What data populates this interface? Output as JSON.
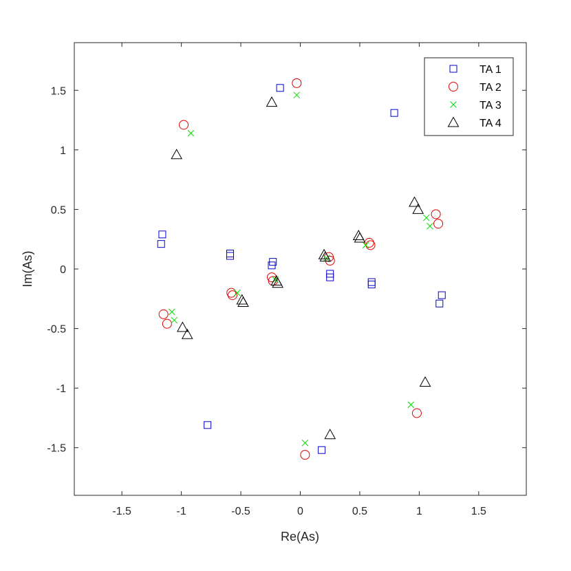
{
  "chart_data": {
    "type": "scatter",
    "title": "",
    "xlabel": "Re(As)",
    "ylabel": "Im(As)",
    "xlim": [
      -1.9,
      1.9
    ],
    "ylim": [
      -1.9,
      1.9
    ],
    "xticks": [
      -1.5,
      -1,
      -0.5,
      0,
      0.5,
      1,
      1.5
    ],
    "yticks": [
      -1.5,
      -1,
      -0.5,
      0,
      0.5,
      1,
      1.5
    ],
    "xtick_labels": [
      "-1.5",
      "-1",
      "-0.5",
      "0",
      "0.5",
      "1",
      "1.5"
    ],
    "ytick_labels": [
      "-1.5",
      "-1",
      "-0.5",
      "0",
      "0.5",
      "1",
      "1.5"
    ],
    "grid": false,
    "legend_position": "top-right",
    "series": [
      {
        "name": "TA 1",
        "marker": "square",
        "color": "#0000cc",
        "points": [
          [
            -0.17,
            1.52
          ],
          [
            0.79,
            1.31
          ],
          [
            -1.16,
            0.29
          ],
          [
            -1.17,
            0.21
          ],
          [
            -0.59,
            0.13
          ],
          [
            -0.59,
            0.11
          ],
          [
            -0.23,
            0.06
          ],
          [
            -0.24,
            0.03
          ],
          [
            0.25,
            -0.04
          ],
          [
            0.25,
            -0.07
          ],
          [
            0.6,
            -0.11
          ],
          [
            0.6,
            -0.13
          ],
          [
            1.19,
            -0.22
          ],
          [
            1.17,
            -0.29
          ],
          [
            -0.78,
            -1.31
          ],
          [
            0.18,
            -1.52
          ]
        ]
      },
      {
        "name": "TA 2",
        "marker": "circle",
        "color": "#e00000",
        "points": [
          [
            -0.03,
            1.56
          ],
          [
            -0.98,
            1.21
          ],
          [
            1.14,
            0.46
          ],
          [
            1.16,
            0.38
          ],
          [
            0.58,
            0.22
          ],
          [
            0.59,
            0.2
          ],
          [
            0.24,
            0.1
          ],
          [
            0.25,
            0.07
          ],
          [
            -0.24,
            -0.07
          ],
          [
            -0.23,
            -0.1
          ],
          [
            -0.58,
            -0.2
          ],
          [
            -0.57,
            -0.22
          ],
          [
            -1.15,
            -0.38
          ],
          [
            -1.12,
            -0.46
          ],
          [
            0.98,
            -1.21
          ],
          [
            0.04,
            -1.56
          ]
        ]
      },
      {
        "name": "TA 3",
        "marker": "x",
        "color": "#00dd00",
        "points": [
          [
            -0.03,
            1.46
          ],
          [
            -0.92,
            1.14
          ],
          [
            1.06,
            0.43
          ],
          [
            1.09,
            0.36
          ],
          [
            0.55,
            0.2
          ],
          [
            0.22,
            0.09
          ],
          [
            -0.21,
            -0.09
          ],
          [
            -0.53,
            -0.2
          ],
          [
            -1.08,
            -0.36
          ],
          [
            -1.06,
            -0.43
          ],
          [
            0.93,
            -1.14
          ],
          [
            0.04,
            -1.46
          ]
        ]
      },
      {
        "name": "TA 4",
        "marker": "triangle",
        "color": "#000000",
        "points": [
          [
            -0.24,
            1.4
          ],
          [
            -1.04,
            0.96
          ],
          [
            0.96,
            0.56
          ],
          [
            0.99,
            0.5
          ],
          [
            0.49,
            0.28
          ],
          [
            0.5,
            0.26
          ],
          [
            0.2,
            0.12
          ],
          [
            0.21,
            0.1
          ],
          [
            -0.2,
            -0.1
          ],
          [
            -0.19,
            -0.12
          ],
          [
            -0.49,
            -0.26
          ],
          [
            -0.48,
            -0.28
          ],
          [
            -0.99,
            -0.49
          ],
          [
            -0.95,
            -0.55
          ],
          [
            1.05,
            -0.95
          ],
          [
            0.25,
            -1.39
          ]
        ]
      }
    ]
  }
}
